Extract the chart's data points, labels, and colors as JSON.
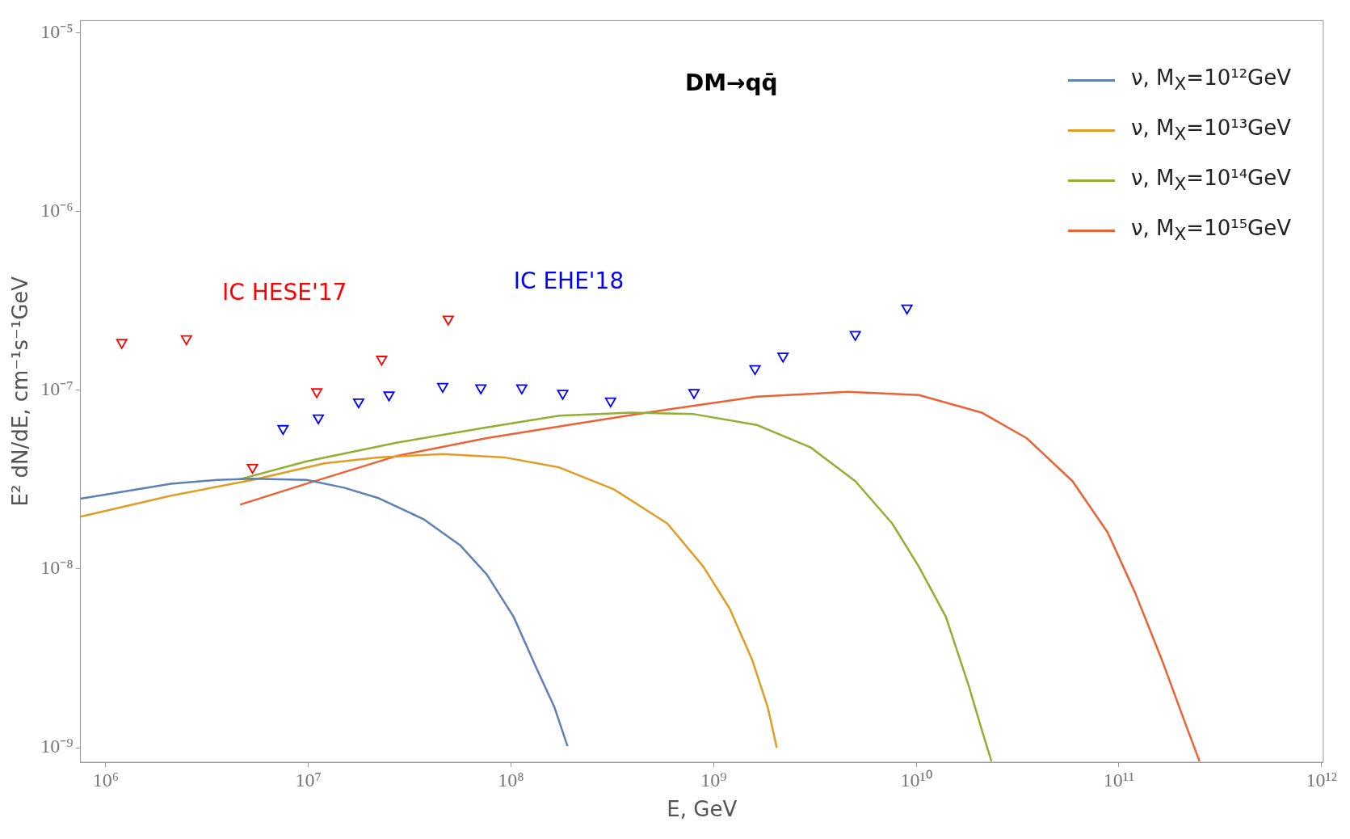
{
  "chart_data": {
    "type": "line",
    "title": "DM→qq̄",
    "xlabel": "E, GeV",
    "ylabel": "E² dN/dE, cm⁻¹s⁻¹GeV",
    "log": "xy",
    "grid": false,
    "legend": "top right",
    "xlim": [
      750000,
      1020000000000.0
    ],
    "ylim": [
      8.3e-10,
      1.17e-05
    ],
    "xticks": [
      {
        "value": 1000000.0,
        "label": "10⁶"
      },
      {
        "value": 10000000.0,
        "label": "10⁷"
      },
      {
        "value": 100000000.0,
        "label": "10⁸"
      },
      {
        "value": 1000000000.0,
        "label": "10⁹"
      },
      {
        "value": 10000000000.0,
        "label": "10¹⁰"
      },
      {
        "value": 100000000000.0,
        "label": "10¹¹"
      },
      {
        "value": 1000000000000.0,
        "label": "10¹²"
      }
    ],
    "yticks": [
      {
        "value": 1e-09,
        "label": "10⁻⁹"
      },
      {
        "value": 1e-08,
        "label": "10⁻⁸"
      },
      {
        "value": 1e-07,
        "label": "10⁻⁷"
      },
      {
        "value": 1e-06,
        "label": "10⁻⁶"
      },
      {
        "value": 1e-05,
        "label": "10⁻⁵"
      }
    ],
    "series": [
      {
        "name": "ν, M$_{X}$=10¹²GeV",
        "color": "#5e81b5",
        "marker": "none",
        "x": [
          750000,
          2100000,
          3550000,
          5300000,
          9800000,
          15000000,
          22000000,
          37000000,
          56000000,
          76000000,
          103000000,
          134000000,
          164000000,
          190000000
        ],
        "values": [
          2.47e-08,
          3e-08,
          3.15e-08,
          3.2e-08,
          3.15e-08,
          2.85e-08,
          2.5e-08,
          1.9e-08,
          1.36e-08,
          9.3e-09,
          5.4e-09,
          2.76e-09,
          1.68e-09,
          1.02e-09
        ]
      },
      {
        "name": "ν, M$_{X}$=10¹³GeV",
        "color": "#e19c24",
        "marker": "none",
        "x": [
          750000,
          2100000,
          5300000,
          12000000,
          22000000,
          46000000,
          94000000,
          173000000,
          320000000,
          590000000,
          890000000,
          1200000000,
          1550000000,
          1850000000,
          2050000000
        ],
        "values": [
          1.96e-08,
          2.57e-08,
          3.15e-08,
          3.9e-08,
          4.2e-08,
          4.4e-08,
          4.2e-08,
          3.7e-08,
          2.8e-08,
          1.8e-08,
          1.03e-08,
          6e-09,
          3.1e-09,
          1.68e-09,
          1e-09
        ]
      },
      {
        "name": "ν, M$_{X}$=10¹⁴GeV",
        "color": "#8fb032",
        "marker": "none",
        "x": [
          4600000,
          9800000,
          27500000,
          76000000,
          173000000,
          390000000,
          800000000,
          1630000000,
          3000000000,
          5000000000,
          7600000000,
          10300000000,
          14000000000,
          18200000000,
          21000000000,
          23500000000
        ],
        "values": [
          3.18e-08,
          4e-08,
          5.1e-08,
          6.2e-08,
          7.2e-08,
          7.5e-08,
          7.35e-08,
          6.4e-08,
          4.8e-08,
          3.1e-08,
          1.8e-08,
          1.03e-08,
          5.4e-09,
          2.2e-09,
          1.27e-09,
          8.4e-10
        ]
      },
      {
        "name": "ν, M$_{X}$=10¹⁵GeV",
        "color": "#eb6235",
        "marker": "none",
        "x": [
          4600000,
          9800000,
          27500000,
          76000000,
          210000000,
          590000000,
          1630000000,
          4600000000,
          10300000000,
          21000000000,
          35000000000,
          59000000000,
          88000000000,
          120000000000,
          163000000000,
          210000000000,
          250000000000
        ],
        "values": [
          2.29e-08,
          3e-08,
          4.3e-08,
          5.4e-08,
          6.5e-08,
          7.8e-08,
          9.2e-08,
          9.8e-08,
          9.4e-08,
          7.5e-08,
          5.4e-08,
          3.1e-08,
          1.6e-08,
          7.4e-09,
          3.1e-09,
          1.42e-09,
          8.4e-10
        ]
      },
      {
        "name": "IC HESE'17",
        "type": "scatter",
        "color": "#ff0000",
        "marker": "triangle",
        "x": [
          1200000,
          2500000,
          5300000,
          11000000,
          23000000,
          49000000
        ],
        "values": [
          1.85e-07,
          1.94e-07,
          3.7e-08,
          9.8e-08,
          1.49e-07,
          2.5e-07
        ]
      },
      {
        "name": "IC EHE'18",
        "type": "scatter",
        "color": "#0000ff",
        "marker": "triangle",
        "x": [
          7500000,
          11200000,
          17700000,
          25000000,
          46000000,
          71000000,
          113000000,
          180000000,
          310000000,
          800000000,
          1600000000,
          2200000000,
          5000000000,
          9000000000
        ],
        "values": [
          6.1e-08,
          7e-08,
          8.6e-08,
          9.4e-08,
          1.05e-07,
          1.03e-07,
          1.03e-07,
          9.6e-08,
          8.7e-08,
          9.7e-08,
          1.32e-07,
          1.55e-07,
          2.05e-07,
          2.88e-07
        ]
      }
    ]
  }
}
